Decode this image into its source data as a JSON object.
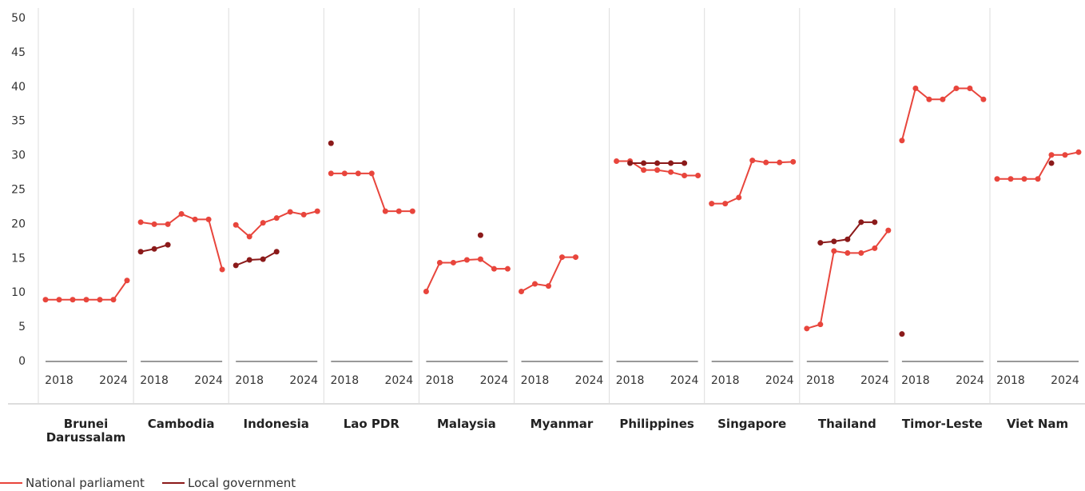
{
  "chart_data": {
    "type": "line",
    "categories": [
      null,
      "2018",
      null,
      null,
      null,
      "2024",
      null
    ],
    "ylim": [
      0,
      50
    ],
    "yticks": [
      0,
      5,
      10,
      15,
      20,
      25,
      30,
      35,
      40,
      45,
      50
    ],
    "panels": [
      {
        "name": "Brunei Darussalam",
        "series": [
          {
            "name": "National parliament",
            "color": "#e8453c",
            "values": [
              9,
              9,
              9,
              9,
              9,
              9,
              11.8
            ]
          },
          {
            "name": "Local government",
            "color": "#8b1a1a",
            "values": [
              null,
              null,
              null,
              null,
              null,
              null,
              null
            ]
          }
        ]
      },
      {
        "name": "Cambodia",
        "series": [
          {
            "name": "National parliament",
            "color": "#e8453c",
            "values": [
              20.3,
              20,
              20,
              21.5,
              20.7,
              20.7,
              13.4
            ]
          },
          {
            "name": "Local government",
            "color": "#8b1a1a",
            "values": [
              16,
              16.4,
              17,
              null,
              null,
              null,
              null
            ]
          }
        ]
      },
      {
        "name": "Indonesia",
        "series": [
          {
            "name": "National parliament",
            "color": "#e8453c",
            "values": [
              19.9,
              18.2,
              20.2,
              20.9,
              21.8,
              21.4,
              21.9
            ]
          },
          {
            "name": "Local government",
            "color": "#8b1a1a",
            "values": [
              14,
              14.8,
              14.9,
              16,
              null,
              null,
              null
            ]
          }
        ]
      },
      {
        "name": "Lao PDR",
        "series": [
          {
            "name": "National parliament",
            "color": "#e8453c",
            "values": [
              27.4,
              27.4,
              27.4,
              27.4,
              21.9,
              21.9,
              21.9
            ]
          },
          {
            "name": "Local government",
            "color": "#8b1a1a",
            "values": [
              31.8,
              null,
              null,
              null,
              null,
              null,
              null
            ]
          }
        ]
      },
      {
        "name": "Malaysia",
        "series": [
          {
            "name": "National parliament",
            "color": "#e8453c",
            "values": [
              10.2,
              14.4,
              14.4,
              14.8,
              14.9,
              13.5,
              13.5
            ]
          },
          {
            "name": "Local government",
            "color": "#8b1a1a",
            "values": [
              null,
              null,
              null,
              null,
              18.4,
              null,
              null
            ]
          }
        ]
      },
      {
        "name": "Myanmar",
        "series": [
          {
            "name": "National parliament",
            "color": "#e8453c",
            "values": [
              10.2,
              11.3,
              11,
              15.2,
              15.2,
              null,
              null
            ]
          },
          {
            "name": "Local government",
            "color": "#8b1a1a",
            "values": [
              null,
              null,
              null,
              null,
              null,
              null,
              null
            ]
          }
        ]
      },
      {
        "name": "Philippines",
        "series": [
          {
            "name": "National parliament",
            "color": "#e8453c",
            "values": [
              29.2,
              29.2,
              27.9,
              27.9,
              27.6,
              27.1,
              27.1
            ]
          },
          {
            "name": "Local government",
            "color": "#8b1a1a",
            "values": [
              null,
              28.9,
              28.9,
              28.9,
              28.9,
              28.9,
              null
            ]
          }
        ]
      },
      {
        "name": "Singapore",
        "series": [
          {
            "name": "National parliament",
            "color": "#e8453c",
            "values": [
              23,
              23,
              23.9,
              29.3,
              29,
              29,
              29.1
            ]
          },
          {
            "name": "Local government",
            "color": "#8b1a1a",
            "values": [
              null,
              null,
              null,
              null,
              null,
              null,
              null
            ]
          }
        ]
      },
      {
        "name": "Thailand",
        "series": [
          {
            "name": "National parliament",
            "color": "#e8453c",
            "values": [
              4.8,
              5.4,
              16.1,
              15.8,
              15.8,
              16.5,
              19.1
            ]
          },
          {
            "name": "Local government",
            "color": "#8b1a1a",
            "values": [
              null,
              17.3,
              17.5,
              17.8,
              20.3,
              20.3,
              null
            ]
          }
        ]
      },
      {
        "name": "Timor-Leste",
        "series": [
          {
            "name": "National parliament",
            "color": "#e8453c",
            "values": [
              32.2,
              39.8,
              38.2,
              38.2,
              39.8,
              39.8,
              38.2
            ]
          },
          {
            "name": "Local government",
            "color": "#8b1a1a",
            "values": [
              4,
              null,
              null,
              null,
              null,
              null,
              null
            ]
          }
        ]
      },
      {
        "name": "Viet Nam",
        "series": [
          {
            "name": "National parliament",
            "color": "#e8453c",
            "values": [
              26.6,
              26.6,
              26.6,
              26.6,
              30.1,
              30.1,
              30.5
            ]
          },
          {
            "name": "Local government",
            "color": "#8b1a1a",
            "values": [
              null,
              null,
              null,
              null,
              28.9,
              null,
              null
            ]
          }
        ]
      }
    ]
  }
}
